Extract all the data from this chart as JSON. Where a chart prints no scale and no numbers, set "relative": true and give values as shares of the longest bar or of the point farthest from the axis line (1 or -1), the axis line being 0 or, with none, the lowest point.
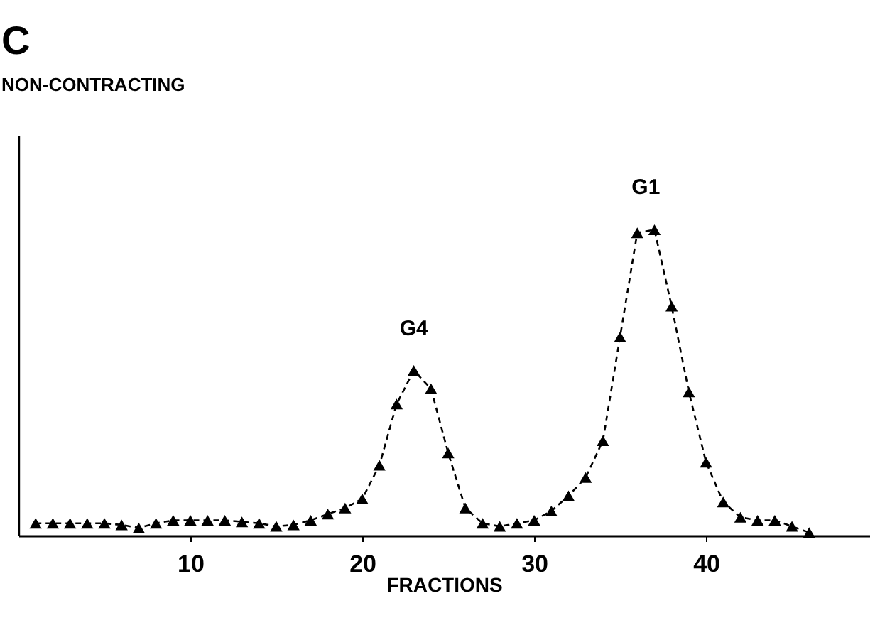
{
  "chart_data": {
    "type": "line",
    "title": "C",
    "subtitle": "NON-CONTRACTING",
    "xlabel": "FRACTIONS",
    "relative": true,
    "tick_labels": "x",
    "grid": false,
    "marker": "triangle",
    "line_style": "dashed",
    "x": [
      1,
      2,
      3,
      4,
      5,
      6,
      7,
      8,
      9,
      10,
      11,
      12,
      13,
      14,
      15,
      16,
      17,
      18,
      19,
      20,
      21,
      22,
      23,
      24,
      25,
      26,
      27,
      28,
      29,
      30,
      31,
      32,
      33,
      34,
      35,
      36,
      37,
      38,
      39,
      40,
      41,
      42,
      43,
      44,
      45,
      46
    ],
    "xlim": [
      0,
      49.5
    ],
    "xticks": [
      10,
      20,
      30,
      40
    ],
    "series": [
      {
        "color": "#000000",
        "values": [
          0.04,
          0.04,
          0.04,
          0.04,
          0.04,
          0.035,
          0.025,
          0.04,
          0.05,
          0.05,
          0.05,
          0.05,
          0.045,
          0.04,
          0.03,
          0.035,
          0.05,
          0.07,
          0.09,
          0.12,
          0.23,
          0.43,
          0.54,
          0.48,
          0.27,
          0.09,
          0.04,
          0.03,
          0.04,
          0.05,
          0.08,
          0.13,
          0.19,
          0.31,
          0.65,
          0.99,
          1,
          0.75,
          0.47,
          0.24,
          0.11,
          0.06,
          0.05,
          0.05,
          0.03,
          0.01
        ]
      }
    ],
    "annotations": [
      {
        "text": "G4",
        "x": 23,
        "y": 0.54
      },
      {
        "text": "G1",
        "x": 36.5,
        "y": 1
      }
    ]
  }
}
